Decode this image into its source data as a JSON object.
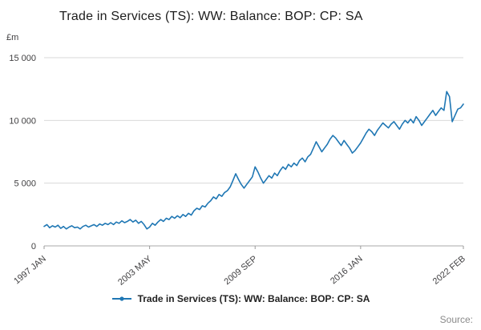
{
  "chart_data": {
    "type": "line",
    "title": "Trade in Services (TS): WW: Balance: BOP: CP: SA",
    "unit": "£m",
    "xlabel": "",
    "ylabel": "£m",
    "ylim": [
      0,
      15000
    ],
    "grid": true,
    "legend_position": "bottom",
    "source_label": "Source:",
    "x_range": "1997 JAN – 2022 FEB (monthly series, values estimated at bimonthly resolution)",
    "y_ticks": [
      {
        "value": 0,
        "label": "0"
      },
      {
        "value": 5000,
        "label": "5 000"
      },
      {
        "value": 10000,
        "label": "10 000"
      },
      {
        "value": 15000,
        "label": "15 000"
      }
    ],
    "x_ticks": [
      {
        "index": 0,
        "label": "1997 JAN"
      },
      {
        "index": 38,
        "label": "2003 MAY"
      },
      {
        "index": 76,
        "label": "2009 SEP"
      },
      {
        "index": 114,
        "label": "2016 JAN"
      },
      {
        "index": 151,
        "label": "2022 FEB"
      }
    ],
    "series": [
      {
        "name": "Trade in Services (TS): WW: Balance: BOP: CP: SA",
        "color": "#1f77b4",
        "values": [
          1550,
          1700,
          1450,
          1600,
          1500,
          1650,
          1400,
          1550,
          1350,
          1500,
          1600,
          1450,
          1500,
          1350,
          1550,
          1650,
          1500,
          1600,
          1700,
          1550,
          1750,
          1650,
          1800,
          1700,
          1850,
          1700,
          1900,
          1800,
          2000,
          1850,
          1950,
          2100,
          1900,
          2050,
          1800,
          1950,
          1700,
          1350,
          1500,
          1800,
          1650,
          1900,
          2100,
          1950,
          2200,
          2100,
          2350,
          2200,
          2400,
          2250,
          2500,
          2350,
          2600,
          2450,
          2800,
          3000,
          2900,
          3200,
          3100,
          3400,
          3600,
          3900,
          3750,
          4100,
          3950,
          4250,
          4400,
          4700,
          5200,
          5750,
          5300,
          4900,
          4600,
          4900,
          5200,
          5500,
          6300,
          5900,
          5400,
          5000,
          5300,
          5600,
          5400,
          5800,
          5600,
          6000,
          6300,
          6100,
          6500,
          6300,
          6600,
          6400,
          6800,
          7000,
          6700,
          7100,
          7300,
          7800,
          8300,
          7900,
          7500,
          7800,
          8100,
          8500,
          8800,
          8600,
          8300,
          8000,
          8400,
          8100,
          7800,
          7400,
          7600,
          7900,
          8200,
          8600,
          9000,
          9300,
          9100,
          8800,
          9200,
          9500,
          9800,
          9600,
          9400,
          9700,
          9900,
          9600,
          9300,
          9700,
          10000,
          9800,
          10100,
          9800,
          10300,
          10000,
          9600,
          9900,
          10200,
          10500,
          10800,
          10400,
          10700,
          11000,
          10800,
          12300,
          11900,
          9900,
          10400,
          10900,
          11000,
          11300
        ]
      }
    ]
  }
}
